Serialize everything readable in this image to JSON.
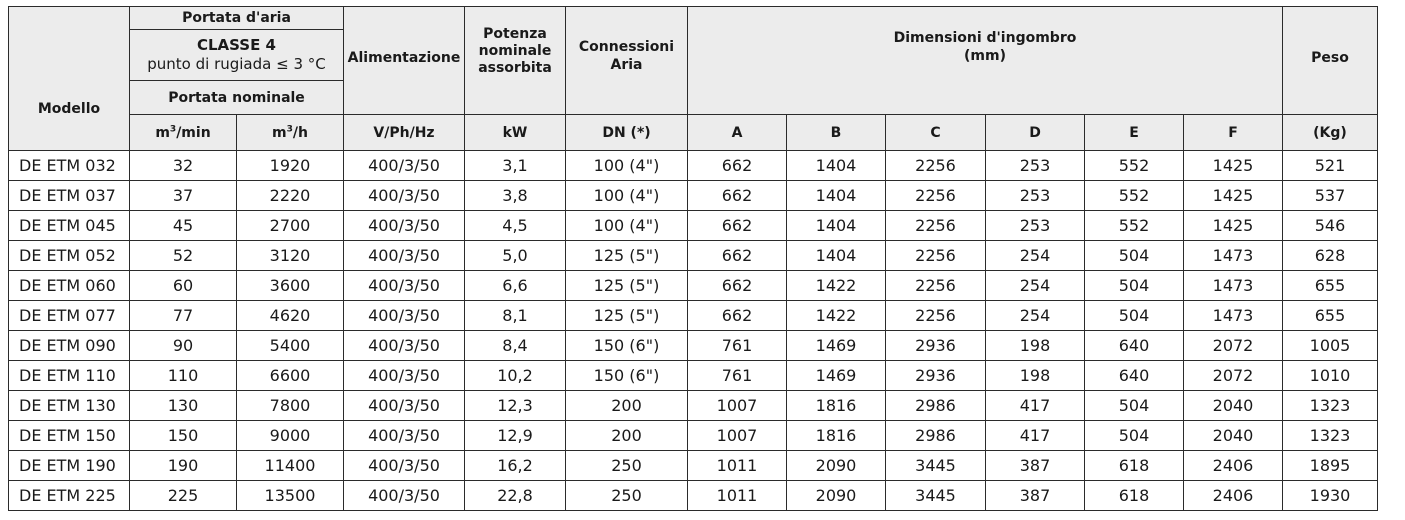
{
  "header": {
    "modello": "Modello",
    "portata_aria": "Portata d'aria",
    "classe": "CLASSE 4",
    "rugiada": "punto di rugiada ≤ 3 °C",
    "portata_nominale": "Portata nominale",
    "alimentazione": "Alimentazione",
    "potenza_1": "Potenza",
    "potenza_2": "nominale",
    "potenza_3": "assorbita",
    "connessioni_1": "Connessioni",
    "connessioni_2": "Aria",
    "dimensioni_1": "Dimensioni d'ingombro",
    "dimensioni_2": "(mm)",
    "peso": "Peso"
  },
  "units": {
    "m3min_prefix": "m",
    "m3min_sup": "3",
    "m3min_suffix": "/min",
    "m3h_prefix": "m",
    "m3h_sup": "3",
    "m3h_suffix": "/h",
    "vphhz": "V/Ph/Hz",
    "kw": "kW",
    "dn": "DN (*)",
    "a": "A",
    "b": "B",
    "c": "C",
    "d": "D",
    "e": "E",
    "f": "F",
    "kg": "(Kg)"
  },
  "rows": [
    [
      "DE ETM 032",
      "32",
      "1920",
      "400/3/50",
      "3,1",
      "100 (4\")",
      "662",
      "1404",
      "2256",
      "253",
      "552",
      "1425",
      "521"
    ],
    [
      "DE ETM 037",
      "37",
      "2220",
      "400/3/50",
      "3,8",
      "100 (4\")",
      "662",
      "1404",
      "2256",
      "253",
      "552",
      "1425",
      "537"
    ],
    [
      "DE ETM 045",
      "45",
      "2700",
      "400/3/50",
      "4,5",
      "100 (4\")",
      "662",
      "1404",
      "2256",
      "253",
      "552",
      "1425",
      "546"
    ],
    [
      "DE ETM 052",
      "52",
      "3120",
      "400/3/50",
      "5,0",
      "125 (5\")",
      "662",
      "1404",
      "2256",
      "254",
      "504",
      "1473",
      "628"
    ],
    [
      "DE ETM 060",
      "60",
      "3600",
      "400/3/50",
      "6,6",
      "125 (5\")",
      "662",
      "1422",
      "2256",
      "254",
      "504",
      "1473",
      "655"
    ],
    [
      "DE ETM 077",
      "77",
      "4620",
      "400/3/50",
      "8,1",
      "125 (5\")",
      "662",
      "1422",
      "2256",
      "254",
      "504",
      "1473",
      "655"
    ],
    [
      "DE ETM 090",
      "90",
      "5400",
      "400/3/50",
      "8,4",
      "150 (6\")",
      "761",
      "1469",
      "2936",
      "198",
      "640",
      "2072",
      "1005"
    ],
    [
      "DE ETM 110",
      "110",
      "6600",
      "400/3/50",
      "10,2",
      "150 (6\")",
      "761",
      "1469",
      "2936",
      "198",
      "640",
      "2072",
      "1010"
    ],
    [
      "DE ETM 130",
      "130",
      "7800",
      "400/3/50",
      "12,3",
      "200",
      "1007",
      "1816",
      "2986",
      "417",
      "504",
      "2040",
      "1323"
    ],
    [
      "DE ETM 150",
      "150",
      "9000",
      "400/3/50",
      "12,9",
      "200",
      "1007",
      "1816",
      "2986",
      "417",
      "504",
      "2040",
      "1323"
    ],
    [
      "DE ETM 190",
      "190",
      "11400",
      "400/3/50",
      "16,2",
      "250",
      "1011",
      "2090",
      "3445",
      "387",
      "618",
      "2406",
      "1895"
    ],
    [
      "DE ETM 225",
      "225",
      "13500",
      "400/3/50",
      "22,8",
      "250",
      "1011",
      "2090",
      "3445",
      "387",
      "618",
      "2406",
      "1930"
    ]
  ]
}
